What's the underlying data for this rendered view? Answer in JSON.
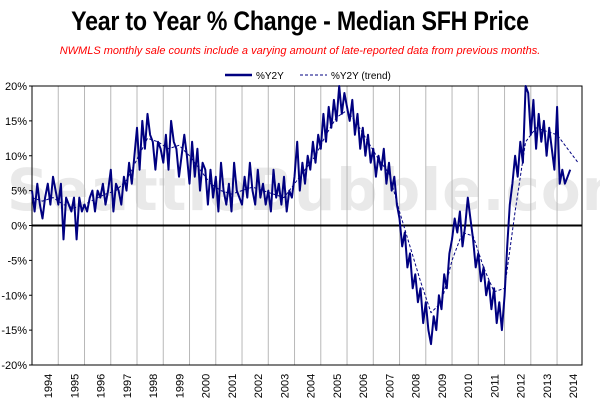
{
  "title": "Year to Year % Change - Median SFH Price",
  "subtitle": "NWMLS monthly sale counts include a varying amount of late-reported data from previous months.",
  "watermark": "SeattleBubble.com",
  "chart_data": {
    "type": "line",
    "ylim": [
      -20,
      20
    ],
    "xlim": [
      1994,
      2014.95
    ],
    "yticks": [
      20,
      15,
      10,
      5,
      0,
      -5,
      -10,
      -15,
      -20
    ],
    "ytick_labels": [
      "20%",
      "15%",
      "10%",
      "5%",
      "0%",
      "-5%",
      "-10%",
      "-15%",
      "-20%"
    ],
    "xtick_labels": [
      "1994",
      "1995",
      "1996",
      "1997",
      "1998",
      "1999",
      "2000",
      "2001",
      "2002",
      "2003",
      "2004",
      "2005",
      "2006",
      "2007",
      "2008",
      "2009",
      "2010",
      "2011",
      "2012",
      "2013",
      "2014"
    ],
    "grid": "vertical",
    "legend": "top-center",
    "zero_line": true,
    "series": [
      {
        "name": "%Y2Y",
        "color": "#000080",
        "style": "solid",
        "points": [
          [
            1994.0,
            5
          ],
          [
            1994.1,
            2
          ],
          [
            1994.2,
            6
          ],
          [
            1994.3,
            3
          ],
          [
            1994.4,
            1
          ],
          [
            1994.5,
            4
          ],
          [
            1994.6,
            6
          ],
          [
            1994.7,
            3
          ],
          [
            1994.8,
            7
          ],
          [
            1994.9,
            5
          ],
          [
            1995.0,
            3
          ],
          [
            1995.1,
            6
          ],
          [
            1995.2,
            -2
          ],
          [
            1995.3,
            4
          ],
          [
            1995.4,
            3
          ],
          [
            1995.5,
            2
          ],
          [
            1995.6,
            4
          ],
          [
            1995.7,
            -2
          ],
          [
            1995.8,
            4
          ],
          [
            1995.9,
            2
          ],
          [
            1996.0,
            3
          ],
          [
            1996.1,
            2
          ],
          [
            1996.2,
            4
          ],
          [
            1996.3,
            5
          ],
          [
            1996.4,
            2
          ],
          [
            1996.5,
            5
          ],
          [
            1996.6,
            4
          ],
          [
            1996.7,
            6
          ],
          [
            1996.8,
            3
          ],
          [
            1996.9,
            5
          ],
          [
            1997.0,
            8
          ],
          [
            1997.1,
            2
          ],
          [
            1997.2,
            6
          ],
          [
            1997.3,
            5
          ],
          [
            1997.4,
            3
          ],
          [
            1997.5,
            7
          ],
          [
            1997.6,
            5
          ],
          [
            1997.7,
            9
          ],
          [
            1997.8,
            6
          ],
          [
            1997.9,
            10
          ],
          [
            1998.0,
            14
          ],
          [
            1998.1,
            8
          ],
          [
            1998.2,
            15
          ],
          [
            1998.3,
            11
          ],
          [
            1998.4,
            16
          ],
          [
            1998.5,
            13
          ],
          [
            1998.6,
            12
          ],
          [
            1998.7,
            8
          ],
          [
            1998.8,
            12
          ],
          [
            1998.9,
            11
          ],
          [
            1999.0,
            9
          ],
          [
            1999.1,
            13
          ],
          [
            1999.2,
            8
          ],
          [
            1999.3,
            15
          ],
          [
            1999.4,
            12
          ],
          [
            1999.5,
            11
          ],
          [
            1999.6,
            7
          ],
          [
            1999.7,
            10
          ],
          [
            1999.8,
            13
          ],
          [
            1999.9,
            10
          ],
          [
            2000.0,
            6
          ],
          [
            2000.1,
            12
          ],
          [
            2000.2,
            7
          ],
          [
            2000.3,
            11
          ],
          [
            2000.4,
            5
          ],
          [
            2000.5,
            9
          ],
          [
            2000.6,
            8
          ],
          [
            2000.7,
            3
          ],
          [
            2000.8,
            8
          ],
          [
            2000.9,
            4
          ],
          [
            2001.0,
            7
          ],
          [
            2001.1,
            2
          ],
          [
            2001.2,
            9
          ],
          [
            2001.3,
            5
          ],
          [
            2001.4,
            3
          ],
          [
            2001.5,
            6
          ],
          [
            2001.6,
            2
          ],
          [
            2001.7,
            9
          ],
          [
            2001.8,
            5
          ],
          [
            2001.9,
            4
          ],
          [
            2002.0,
            3
          ],
          [
            2002.1,
            7
          ],
          [
            2002.2,
            4
          ],
          [
            2002.3,
            9
          ],
          [
            2002.4,
            5
          ],
          [
            2002.5,
            3
          ],
          [
            2002.6,
            8
          ],
          [
            2002.7,
            4
          ],
          [
            2002.8,
            6
          ],
          [
            2002.9,
            3
          ],
          [
            2003.0,
            5
          ],
          [
            2003.1,
            2
          ],
          [
            2003.2,
            8
          ],
          [
            2003.3,
            4
          ],
          [
            2003.4,
            6
          ],
          [
            2003.5,
            3
          ],
          [
            2003.6,
            7
          ],
          [
            2003.7,
            2
          ],
          [
            2003.8,
            5
          ],
          [
            2003.9,
            4
          ],
          [
            2004.0,
            7
          ],
          [
            2004.1,
            12
          ],
          [
            2004.2,
            5
          ],
          [
            2004.3,
            9
          ],
          [
            2004.4,
            6
          ],
          [
            2004.5,
            10
          ],
          [
            2004.6,
            8
          ],
          [
            2004.7,
            12
          ],
          [
            2004.8,
            9
          ],
          [
            2004.9,
            13
          ],
          [
            2005.0,
            11
          ],
          [
            2005.1,
            16
          ],
          [
            2005.2,
            12
          ],
          [
            2005.3,
            17
          ],
          [
            2005.4,
            14
          ],
          [
            2005.5,
            18
          ],
          [
            2005.6,
            15
          ],
          [
            2005.7,
            20
          ],
          [
            2005.8,
            16
          ],
          [
            2005.9,
            19
          ],
          [
            2006.0,
            17
          ],
          [
            2006.1,
            15
          ],
          [
            2006.2,
            18
          ],
          [
            2006.3,
            13
          ],
          [
            2006.4,
            16
          ],
          [
            2006.5,
            11
          ],
          [
            2006.6,
            14
          ],
          [
            2006.7,
            10
          ],
          [
            2006.8,
            13
          ],
          [
            2006.9,
            9
          ],
          [
            2007.0,
            11
          ],
          [
            2007.1,
            7
          ],
          [
            2007.2,
            10
          ],
          [
            2007.3,
            8
          ],
          [
            2007.4,
            11
          ],
          [
            2007.5,
            6
          ],
          [
            2007.6,
            9
          ],
          [
            2007.7,
            5
          ],
          [
            2007.8,
            7
          ],
          [
            2007.9,
            3
          ],
          [
            2008.0,
            1
          ],
          [
            2008.1,
            -3
          ],
          [
            2008.2,
            -1
          ],
          [
            2008.3,
            -6
          ],
          [
            2008.4,
            -4
          ],
          [
            2008.5,
            -9
          ],
          [
            2008.6,
            -7
          ],
          [
            2008.7,
            -11
          ],
          [
            2008.8,
            -9
          ],
          [
            2008.9,
            -14
          ],
          [
            2009.0,
            -11
          ],
          [
            2009.1,
            -15
          ],
          [
            2009.2,
            -17
          ],
          [
            2009.3,
            -13
          ],
          [
            2009.4,
            -15
          ],
          [
            2009.5,
            -10
          ],
          [
            2009.6,
            -12
          ],
          [
            2009.7,
            -7
          ],
          [
            2009.8,
            -9
          ],
          [
            2009.9,
            -4
          ],
          [
            2010.0,
            -2
          ],
          [
            2010.1,
            1
          ],
          [
            2010.2,
            -1
          ],
          [
            2010.3,
            2
          ],
          [
            2010.4,
            -3
          ],
          [
            2010.5,
            0
          ],
          [
            2010.6,
            4
          ],
          [
            2010.7,
            1
          ],
          [
            2010.8,
            -2
          ],
          [
            2010.9,
            -6
          ],
          [
            2011.0,
            -4
          ],
          [
            2011.1,
            -8
          ],
          [
            2011.2,
            -6
          ],
          [
            2011.3,
            -10
          ],
          [
            2011.4,
            -8
          ],
          [
            2011.5,
            -12
          ],
          [
            2011.6,
            -9
          ],
          [
            2011.7,
            -14
          ],
          [
            2011.8,
            -11
          ],
          [
            2011.9,
            -15
          ],
          [
            2012.0,
            -10
          ],
          [
            2012.1,
            -3
          ],
          [
            2012.2,
            3
          ],
          [
            2012.3,
            6
          ],
          [
            2012.4,
            10
          ],
          [
            2012.5,
            7
          ],
          [
            2012.6,
            12
          ],
          [
            2012.7,
            9
          ],
          [
            2012.8,
            20
          ],
          [
            2012.9,
            19
          ],
          [
            2013.0,
            13
          ],
          [
            2013.1,
            18
          ],
          [
            2013.2,
            11
          ],
          [
            2013.3,
            16
          ],
          [
            2013.4,
            12
          ],
          [
            2013.5,
            15
          ],
          [
            2013.6,
            10
          ],
          [
            2013.7,
            14
          ],
          [
            2013.8,
            11
          ],
          [
            2013.9,
            8
          ],
          [
            2014.0,
            17
          ],
          [
            2014.1,
            6
          ],
          [
            2014.2,
            8
          ],
          [
            2014.3,
            6
          ],
          [
            2014.4,
            7
          ],
          [
            2014.5,
            8
          ]
        ]
      },
      {
        "name": "%Y2Y (trend)",
        "color": "#000080",
        "style": "dashed",
        "points": [
          [
            1994.0,
            4
          ],
          [
            1994.4,
            3.5
          ],
          [
            1994.8,
            4
          ],
          [
            1995.2,
            3
          ],
          [
            1995.6,
            2.5
          ],
          [
            1996.0,
            3
          ],
          [
            1996.4,
            3.8
          ],
          [
            1996.8,
            4.5
          ],
          [
            1997.2,
            5
          ],
          [
            1997.6,
            6.5
          ],
          [
            1998.0,
            9.5
          ],
          [
            1998.4,
            12.5
          ],
          [
            1998.8,
            12
          ],
          [
            1999.2,
            11
          ],
          [
            1999.6,
            11.5
          ],
          [
            2000.0,
            10
          ],
          [
            2000.4,
            8
          ],
          [
            2000.8,
            6
          ],
          [
            2001.2,
            5
          ],
          [
            2001.6,
            4.5
          ],
          [
            2002.0,
            5
          ],
          [
            2002.4,
            5.5
          ],
          [
            2002.8,
            5
          ],
          [
            2003.2,
            4.5
          ],
          [
            2003.6,
            4
          ],
          [
            2004.0,
            6
          ],
          [
            2004.4,
            8
          ],
          [
            2004.8,
            10
          ],
          [
            2005.2,
            13
          ],
          [
            2005.6,
            15.5
          ],
          [
            2006.0,
            16.5
          ],
          [
            2006.4,
            14.5
          ],
          [
            2006.8,
            12
          ],
          [
            2007.2,
            9.5
          ],
          [
            2007.6,
            7.5
          ],
          [
            2008.0,
            2
          ],
          [
            2008.4,
            -3
          ],
          [
            2008.8,
            -8
          ],
          [
            2009.2,
            -12.5
          ],
          [
            2009.6,
            -11
          ],
          [
            2010.0,
            -5
          ],
          [
            2010.4,
            -1
          ],
          [
            2010.8,
            -1.5
          ],
          [
            2011.2,
            -6
          ],
          [
            2011.6,
            -9.5
          ],
          [
            2012.0,
            -9
          ],
          [
            2012.4,
            2
          ],
          [
            2012.8,
            12
          ],
          [
            2013.2,
            14
          ],
          [
            2013.6,
            13.5
          ],
          [
            2014.0,
            13
          ],
          [
            2014.4,
            11
          ],
          [
            2014.8,
            9
          ]
        ]
      }
    ]
  }
}
